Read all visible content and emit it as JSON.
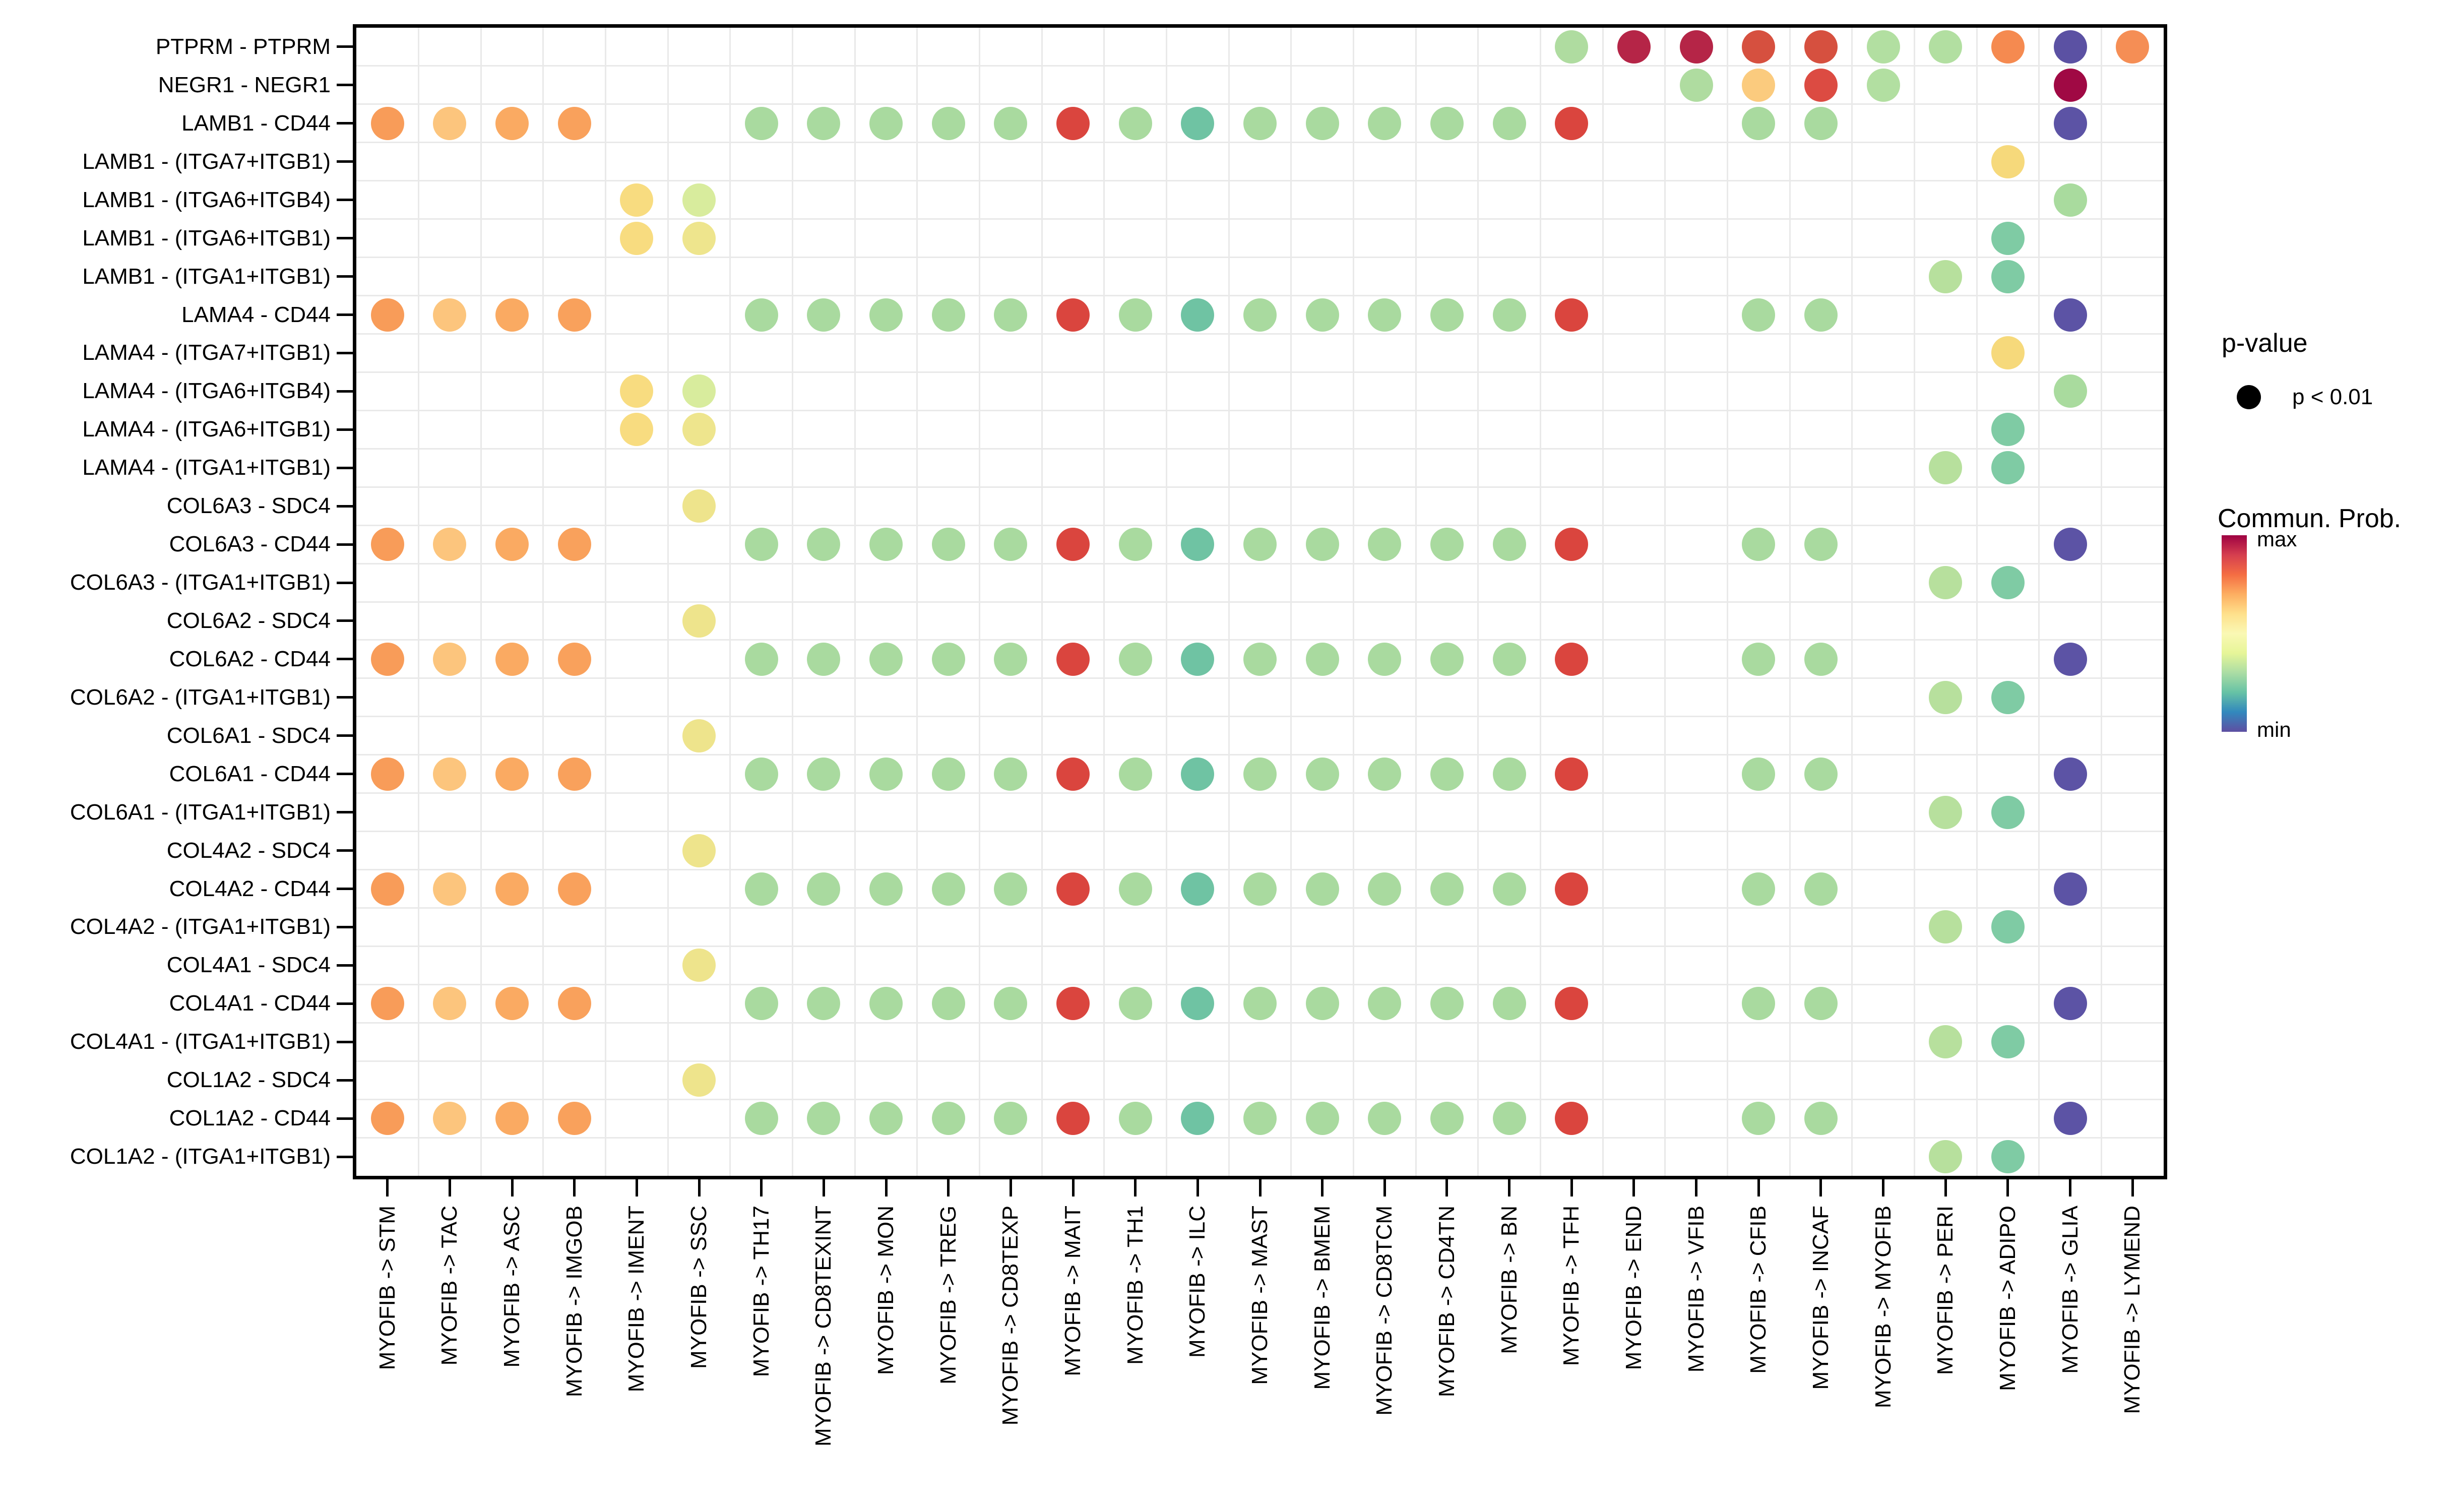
{
  "chart_data": {
    "type": "scatter",
    "subtype": "bubble-dotplot",
    "title": "",
    "xlabel": "",
    "ylabel": "",
    "grid": "on",
    "legend_position": "right",
    "x_categories": [
      "MYOFIB -> STM",
      "MYOFIB -> TAC",
      "MYOFIB -> ASC",
      "MYOFIB -> IMGOB",
      "MYOFIB -> IMENT",
      "MYOFIB -> SSC",
      "MYOFIB -> TH17",
      "MYOFIB -> CD8TEXINT",
      "MYOFIB -> MON",
      "MYOFIB -> TREG",
      "MYOFIB -> CD8TEXP",
      "MYOFIB -> MAIT",
      "MYOFIB -> TH1",
      "MYOFIB -> ILC",
      "MYOFIB -> MAST",
      "MYOFIB -> BMEM",
      "MYOFIB -> CD8TCM",
      "MYOFIB -> CD4TN",
      "MYOFIB -> BN",
      "MYOFIB -> TFH",
      "MYOFIB -> END",
      "MYOFIB -> VFIB",
      "MYOFIB -> CFIB",
      "MYOFIB -> INCAF",
      "MYOFIB -> MYOFIB",
      "MYOFIB -> PERI",
      "MYOFIB -> ADIPO",
      "MYOFIB -> GLIA",
      "MYOFIB -> LYMEND"
    ],
    "y_categories": [
      "PTPRM - PTPRM",
      "NEGR1 - NEGR1",
      "LAMB1 - CD44",
      "LAMB1 - (ITGA7+ITGB1)",
      "LAMB1 - (ITGA6+ITGB4)",
      "LAMB1 - (ITGA6+ITGB1)",
      "LAMB1 - (ITGA1+ITGB1)",
      "LAMA4 - CD44",
      "LAMA4 - (ITGA7+ITGB1)",
      "LAMA4 - (ITGA6+ITGB4)",
      "LAMA4 - (ITGA6+ITGB1)",
      "LAMA4 - (ITGA1+ITGB1)",
      "COL6A3 - SDC4",
      "COL6A3 - CD44",
      "COL6A3 - (ITGA1+ITGB1)",
      "COL6A2 - SDC4",
      "COL6A2 - CD44",
      "COL6A2 - (ITGA1+ITGB1)",
      "COL6A1 - SDC4",
      "COL6A1 - CD44",
      "COL6A1 - (ITGA1+ITGB1)",
      "COL4A2 - SDC4",
      "COL4A2 - CD44",
      "COL4A2 - (ITGA1+ITGB1)",
      "COL4A1 - SDC4",
      "COL4A1 - CD44",
      "COL4A1 - (ITGA1+ITGB1)",
      "COL1A2 - SDC4",
      "COL1A2 - CD44",
      "COL1A2 - (ITGA1+ITGB1)"
    ],
    "dot_encoding": {
      "size": "p-value (all shown dots: p < 0.01)",
      "color": "Commun. Prob. (Spectral scale, min=purple to max=dark red)"
    },
    "dots": [
      [
        0,
        19,
        "#AFDCA0",
        0.43
      ],
      [
        0,
        20,
        "#B52547",
        0.95
      ],
      [
        0,
        21,
        "#B52547",
        0.95
      ],
      [
        0,
        22,
        "#D6503F",
        0.87
      ],
      [
        0,
        23,
        "#D6503F",
        0.87
      ],
      [
        0,
        24,
        "#B2DFA1",
        0.43
      ],
      [
        0,
        25,
        "#B2DFA1",
        0.43
      ],
      [
        0,
        26,
        "#F58A50",
        0.78
      ],
      [
        0,
        27,
        "#5B51A3",
        0.02
      ],
      [
        0,
        28,
        "#F58E55",
        0.78
      ],
      [
        1,
        21,
        "#AFDCA0",
        0.43
      ],
      [
        1,
        22,
        "#FBCB7E",
        0.67
      ],
      [
        1,
        23,
        "#DC4B42",
        0.87
      ],
      [
        1,
        24,
        "#B2DFA1",
        0.43
      ],
      [
        1,
        27,
        "#A00944",
        1.0
      ],
      [
        2,
        0,
        "#F89C59",
        0.76
      ],
      [
        2,
        1,
        "#FCC57D",
        0.68
      ],
      [
        2,
        2,
        "#FAAA62",
        0.73
      ],
      [
        2,
        3,
        "#F9A15C",
        0.75
      ],
      [
        2,
        6,
        "#A9DA9F",
        0.42
      ],
      [
        2,
        7,
        "#A9DA9F",
        0.42
      ],
      [
        2,
        8,
        "#A9DA9F",
        0.42
      ],
      [
        2,
        9,
        "#A9DA9F",
        0.42
      ],
      [
        2,
        10,
        "#A9DA9F",
        0.42
      ],
      [
        2,
        11,
        "#DA453E",
        0.87
      ],
      [
        2,
        12,
        "#A9DA9F",
        0.42
      ],
      [
        2,
        13,
        "#6FC3A3",
        0.27
      ],
      [
        2,
        14,
        "#A9DA9F",
        0.42
      ],
      [
        2,
        15,
        "#A9DA9F",
        0.42
      ],
      [
        2,
        16,
        "#A9DA9F",
        0.42
      ],
      [
        2,
        17,
        "#A9DA9F",
        0.42
      ],
      [
        2,
        18,
        "#A9DA9F",
        0.42
      ],
      [
        2,
        19,
        "#DA453E",
        0.87
      ],
      [
        2,
        22,
        "#A9DA9F",
        0.42
      ],
      [
        2,
        23,
        "#A9DA9F",
        0.42
      ],
      [
        2,
        27,
        "#5C53A5",
        0.02
      ],
      [
        3,
        26,
        "#F6D97B",
        0.63
      ],
      [
        4,
        4,
        "#F8DC80",
        0.62
      ],
      [
        4,
        5,
        "#D8EC9D",
        0.52
      ],
      [
        4,
        27,
        "#A9DB9E",
        0.42
      ],
      [
        5,
        4,
        "#F8DC80",
        0.62
      ],
      [
        5,
        5,
        "#EEE58D",
        0.57
      ],
      [
        5,
        26,
        "#7FCBA4",
        0.3
      ],
      [
        6,
        25,
        "#B7E09D",
        0.44
      ],
      [
        6,
        26,
        "#7FCBA4",
        0.3
      ],
      [
        7,
        0,
        "#F89C59",
        0.76
      ],
      [
        7,
        1,
        "#FCC57D",
        0.68
      ],
      [
        7,
        2,
        "#FAAA62",
        0.73
      ],
      [
        7,
        3,
        "#F9A15C",
        0.75
      ],
      [
        7,
        6,
        "#A9DA9F",
        0.42
      ],
      [
        7,
        7,
        "#A9DA9F",
        0.42
      ],
      [
        7,
        8,
        "#A9DA9F",
        0.42
      ],
      [
        7,
        9,
        "#A9DA9F",
        0.42
      ],
      [
        7,
        10,
        "#A9DA9F",
        0.42
      ],
      [
        7,
        11,
        "#DA453E",
        0.87
      ],
      [
        7,
        12,
        "#A9DA9F",
        0.42
      ],
      [
        7,
        13,
        "#6FC3A3",
        0.27
      ],
      [
        7,
        14,
        "#A9DA9F",
        0.42
      ],
      [
        7,
        15,
        "#A9DA9F",
        0.42
      ],
      [
        7,
        16,
        "#A9DA9F",
        0.42
      ],
      [
        7,
        17,
        "#A9DA9F",
        0.42
      ],
      [
        7,
        18,
        "#A9DA9F",
        0.42
      ],
      [
        7,
        19,
        "#DA453E",
        0.87
      ],
      [
        7,
        22,
        "#A9DA9F",
        0.42
      ],
      [
        7,
        23,
        "#A9DA9F",
        0.42
      ],
      [
        7,
        27,
        "#5C53A5",
        0.02
      ],
      [
        8,
        26,
        "#F6D97B",
        0.63
      ],
      [
        9,
        4,
        "#F8DC80",
        0.62
      ],
      [
        9,
        5,
        "#D8EC9D",
        0.52
      ],
      [
        9,
        27,
        "#A9DB9E",
        0.42
      ],
      [
        10,
        4,
        "#F8DC80",
        0.62
      ],
      [
        10,
        5,
        "#EEE58D",
        0.57
      ],
      [
        10,
        26,
        "#7FCBA4",
        0.3
      ],
      [
        11,
        25,
        "#B7E09D",
        0.44
      ],
      [
        11,
        26,
        "#7FCBA4",
        0.3
      ],
      [
        12,
        5,
        "#EEE48C",
        0.57
      ],
      [
        13,
        0,
        "#F89C59",
        0.76
      ],
      [
        13,
        1,
        "#FCC57D",
        0.68
      ],
      [
        13,
        2,
        "#FAAA62",
        0.73
      ],
      [
        13,
        3,
        "#F9A15C",
        0.75
      ],
      [
        13,
        6,
        "#A9DA9F",
        0.42
      ],
      [
        13,
        7,
        "#A9DA9F",
        0.42
      ],
      [
        13,
        8,
        "#A9DA9F",
        0.42
      ],
      [
        13,
        9,
        "#A9DA9F",
        0.42
      ],
      [
        13,
        10,
        "#A9DA9F",
        0.42
      ],
      [
        13,
        11,
        "#DA453E",
        0.87
      ],
      [
        13,
        12,
        "#A9DA9F",
        0.42
      ],
      [
        13,
        13,
        "#6FC3A3",
        0.27
      ],
      [
        13,
        14,
        "#A9DA9F",
        0.42
      ],
      [
        13,
        15,
        "#A9DA9F",
        0.42
      ],
      [
        13,
        16,
        "#A9DA9F",
        0.42
      ],
      [
        13,
        17,
        "#A9DA9F",
        0.42
      ],
      [
        13,
        18,
        "#A9DA9F",
        0.42
      ],
      [
        13,
        19,
        "#DA453E",
        0.87
      ],
      [
        13,
        22,
        "#A9DA9F",
        0.42
      ],
      [
        13,
        23,
        "#A9DA9F",
        0.42
      ],
      [
        13,
        27,
        "#5C53A5",
        0.02
      ],
      [
        14,
        25,
        "#B7E09D",
        0.44
      ],
      [
        14,
        26,
        "#7FCBA4",
        0.3
      ],
      [
        15,
        5,
        "#EEE48C",
        0.57
      ],
      [
        16,
        0,
        "#F89C59",
        0.76
      ],
      [
        16,
        1,
        "#FCC57D",
        0.68
      ],
      [
        16,
        2,
        "#FAAA62",
        0.73
      ],
      [
        16,
        3,
        "#F9A15C",
        0.75
      ],
      [
        16,
        6,
        "#A9DA9F",
        0.42
      ],
      [
        16,
        7,
        "#A9DA9F",
        0.42
      ],
      [
        16,
        8,
        "#A9DA9F",
        0.42
      ],
      [
        16,
        9,
        "#A9DA9F",
        0.42
      ],
      [
        16,
        10,
        "#A9DA9F",
        0.42
      ],
      [
        16,
        11,
        "#DA453E",
        0.87
      ],
      [
        16,
        12,
        "#A9DA9F",
        0.42
      ],
      [
        16,
        13,
        "#6FC3A3",
        0.27
      ],
      [
        16,
        14,
        "#A9DA9F",
        0.42
      ],
      [
        16,
        15,
        "#A9DA9F",
        0.42
      ],
      [
        16,
        16,
        "#A9DA9F",
        0.42
      ],
      [
        16,
        17,
        "#A9DA9F",
        0.42
      ],
      [
        16,
        18,
        "#A9DA9F",
        0.42
      ],
      [
        16,
        19,
        "#DA453E",
        0.87
      ],
      [
        16,
        22,
        "#A9DA9F",
        0.42
      ],
      [
        16,
        23,
        "#A9DA9F",
        0.42
      ],
      [
        16,
        27,
        "#5C53A5",
        0.02
      ],
      [
        17,
        25,
        "#B7E09D",
        0.44
      ],
      [
        17,
        26,
        "#7FCBA4",
        0.3
      ],
      [
        18,
        5,
        "#EEE48C",
        0.57
      ],
      [
        19,
        0,
        "#F89C59",
        0.76
      ],
      [
        19,
        1,
        "#FCC57D",
        0.68
      ],
      [
        19,
        2,
        "#FAAA62",
        0.73
      ],
      [
        19,
        3,
        "#F9A15C",
        0.75
      ],
      [
        19,
        6,
        "#A9DA9F",
        0.42
      ],
      [
        19,
        7,
        "#A9DA9F",
        0.42
      ],
      [
        19,
        8,
        "#A9DA9F",
        0.42
      ],
      [
        19,
        9,
        "#A9DA9F",
        0.42
      ],
      [
        19,
        10,
        "#A9DA9F",
        0.42
      ],
      [
        19,
        11,
        "#DA453E",
        0.87
      ],
      [
        19,
        12,
        "#A9DA9F",
        0.42
      ],
      [
        19,
        13,
        "#6FC3A3",
        0.27
      ],
      [
        19,
        14,
        "#A9DA9F",
        0.42
      ],
      [
        19,
        15,
        "#A9DA9F",
        0.42
      ],
      [
        19,
        16,
        "#A9DA9F",
        0.42
      ],
      [
        19,
        17,
        "#A9DA9F",
        0.42
      ],
      [
        19,
        18,
        "#A9DA9F",
        0.42
      ],
      [
        19,
        19,
        "#DA453E",
        0.87
      ],
      [
        19,
        22,
        "#A9DA9F",
        0.42
      ],
      [
        19,
        23,
        "#A9DA9F",
        0.42
      ],
      [
        19,
        27,
        "#5C53A5",
        0.02
      ],
      [
        20,
        25,
        "#B7E09D",
        0.44
      ],
      [
        20,
        26,
        "#7FCBA4",
        0.3
      ],
      [
        21,
        5,
        "#EEE48C",
        0.57
      ],
      [
        22,
        0,
        "#F89C59",
        0.76
      ],
      [
        22,
        1,
        "#FCC57D",
        0.68
      ],
      [
        22,
        2,
        "#FAAA62",
        0.73
      ],
      [
        22,
        3,
        "#F9A15C",
        0.75
      ],
      [
        22,
        6,
        "#A9DA9F",
        0.42
      ],
      [
        22,
        7,
        "#A9DA9F",
        0.42
      ],
      [
        22,
        8,
        "#A9DA9F",
        0.42
      ],
      [
        22,
        9,
        "#A9DA9F",
        0.42
      ],
      [
        22,
        10,
        "#A9DA9F",
        0.42
      ],
      [
        22,
        11,
        "#DA453E",
        0.87
      ],
      [
        22,
        12,
        "#A9DA9F",
        0.42
      ],
      [
        22,
        13,
        "#6FC3A3",
        0.27
      ],
      [
        22,
        14,
        "#A9DA9F",
        0.42
      ],
      [
        22,
        15,
        "#A9DA9F",
        0.42
      ],
      [
        22,
        16,
        "#A9DA9F",
        0.42
      ],
      [
        22,
        17,
        "#A9DA9F",
        0.42
      ],
      [
        22,
        18,
        "#A9DA9F",
        0.42
      ],
      [
        22,
        19,
        "#DA453E",
        0.87
      ],
      [
        22,
        22,
        "#A9DA9F",
        0.42
      ],
      [
        22,
        23,
        "#A9DA9F",
        0.42
      ],
      [
        22,
        27,
        "#5C53A5",
        0.02
      ],
      [
        23,
        25,
        "#B7E09D",
        0.44
      ],
      [
        23,
        26,
        "#7FCBA4",
        0.3
      ],
      [
        24,
        5,
        "#EEE48C",
        0.57
      ],
      [
        25,
        0,
        "#F89C59",
        0.76
      ],
      [
        25,
        1,
        "#FCC57D",
        0.68
      ],
      [
        25,
        2,
        "#FAAA62",
        0.73
      ],
      [
        25,
        3,
        "#F9A15C",
        0.75
      ],
      [
        25,
        6,
        "#A9DA9F",
        0.42
      ],
      [
        25,
        7,
        "#A9DA9F",
        0.42
      ],
      [
        25,
        8,
        "#A9DA9F",
        0.42
      ],
      [
        25,
        9,
        "#A9DA9F",
        0.42
      ],
      [
        25,
        10,
        "#A9DA9F",
        0.42
      ],
      [
        25,
        11,
        "#DA453E",
        0.87
      ],
      [
        25,
        12,
        "#A9DA9F",
        0.42
      ],
      [
        25,
        13,
        "#6FC3A3",
        0.27
      ],
      [
        25,
        14,
        "#A9DA9F",
        0.42
      ],
      [
        25,
        15,
        "#A9DA9F",
        0.42
      ],
      [
        25,
        16,
        "#A9DA9F",
        0.42
      ],
      [
        25,
        17,
        "#A9DA9F",
        0.42
      ],
      [
        25,
        18,
        "#A9DA9F",
        0.42
      ],
      [
        25,
        19,
        "#DA453E",
        0.87
      ],
      [
        25,
        22,
        "#A9DA9F",
        0.42
      ],
      [
        25,
        23,
        "#A9DA9F",
        0.42
      ],
      [
        25,
        27,
        "#5C53A5",
        0.02
      ],
      [
        26,
        25,
        "#B7E09D",
        0.44
      ],
      [
        26,
        26,
        "#7FCBA4",
        0.3
      ],
      [
        27,
        5,
        "#EEE48C",
        0.57
      ],
      [
        28,
        0,
        "#F89C59",
        0.76
      ],
      [
        28,
        1,
        "#FCC57D",
        0.68
      ],
      [
        28,
        2,
        "#FAAA62",
        0.73
      ],
      [
        28,
        3,
        "#F9A15C",
        0.75
      ],
      [
        28,
        6,
        "#A9DA9F",
        0.42
      ],
      [
        28,
        7,
        "#A9DA9F",
        0.42
      ],
      [
        28,
        8,
        "#A9DA9F",
        0.42
      ],
      [
        28,
        9,
        "#A9DA9F",
        0.42
      ],
      [
        28,
        10,
        "#A9DA9F",
        0.42
      ],
      [
        28,
        11,
        "#DA453E",
        0.87
      ],
      [
        28,
        12,
        "#A9DA9F",
        0.42
      ],
      [
        28,
        13,
        "#6FC3A3",
        0.27
      ],
      [
        28,
        14,
        "#A9DA9F",
        0.42
      ],
      [
        28,
        15,
        "#A9DA9F",
        0.42
      ],
      [
        28,
        16,
        "#A9DA9F",
        0.42
      ],
      [
        28,
        17,
        "#A9DA9F",
        0.42
      ],
      [
        28,
        18,
        "#A9DA9F",
        0.42
      ],
      [
        28,
        19,
        "#DA453E",
        0.87
      ],
      [
        28,
        22,
        "#A9DA9F",
        0.42
      ],
      [
        28,
        23,
        "#A9DA9F",
        0.42
      ],
      [
        28,
        27,
        "#5C53A5",
        0.02
      ],
      [
        29,
        25,
        "#B7E09D",
        0.44
      ],
      [
        29,
        26,
        "#7FCBA4",
        0.3
      ]
    ],
    "legend": {
      "pvalue": {
        "title": "p-value",
        "items": [
          {
            "label": "p < 0.01",
            "dot_color": "#000000"
          }
        ]
      },
      "colorbar": {
        "title": "Commun. Prob.",
        "max_label": "max",
        "min_label": "min",
        "gradient": [
          "#9E0142",
          "#D53E4F",
          "#F46D43",
          "#FDAE61",
          "#FEE08B",
          "#FAF8B4",
          "#E6F598",
          "#ABDDA4",
          "#66C2A5",
          "#3288BD",
          "#5E4FA2"
        ]
      }
    },
    "colors": {
      "panel_border": "#000000",
      "gridline": "#e9e9e9",
      "background": "#ffffff"
    }
  }
}
